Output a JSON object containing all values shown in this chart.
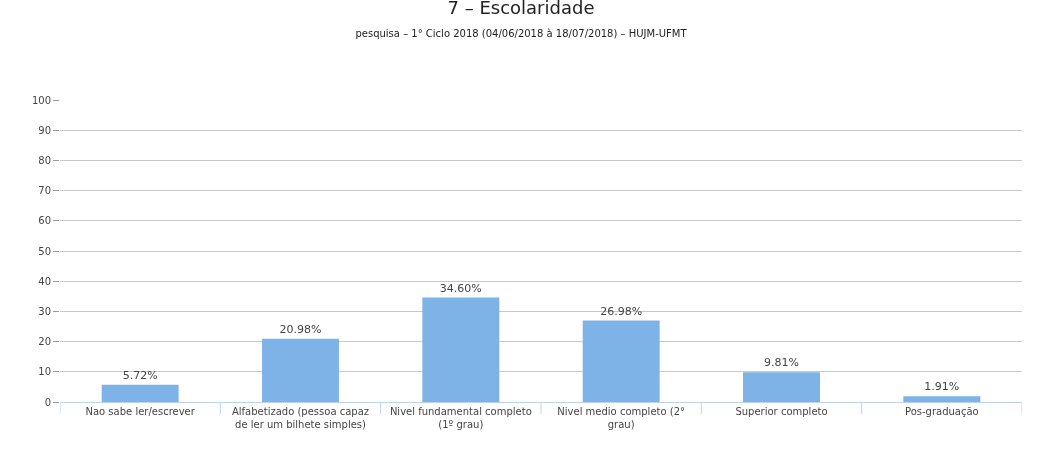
{
  "chart_data": {
    "type": "bar",
    "title": "7 – Escolaridade",
    "subtitle": "pesquisa – 1° Ciclo 2018 (04/06/2018 à 18/07/2018) – HUJM-UFMT",
    "categories": [
      "Nao sabe ler/escrever",
      "Alfabetizado (pessoa capaz de ler um bilhete simples)",
      "Nivel fundamental completo (1º grau)",
      "Nivel medio completo (2° grau)",
      "Superior completo",
      "Pos-graduação"
    ],
    "values": [
      5.72,
      20.98,
      34.6,
      26.98,
      9.81,
      1.91
    ],
    "value_labels": [
      "5.72%",
      "20.98%",
      "34.60%",
      "26.98%",
      "9.81%",
      "1.91%"
    ],
    "color": "#7eb3e8",
    "ylim": [
      0,
      100
    ],
    "yticks": [
      0,
      10,
      20,
      30,
      40,
      50,
      60,
      70,
      80,
      90,
      100
    ],
    "grid": "y",
    "legend": false
  }
}
